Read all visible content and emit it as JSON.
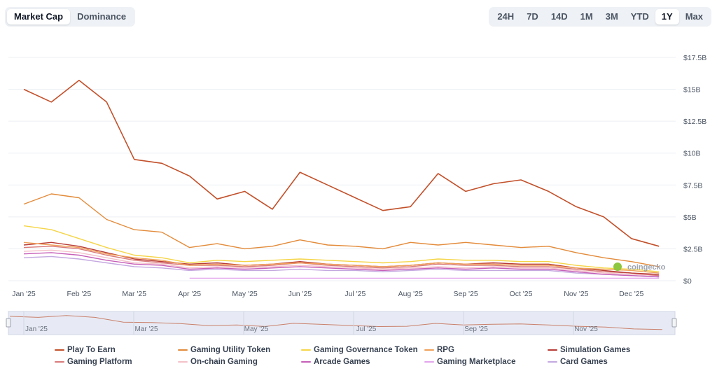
{
  "tabs": [
    {
      "label": "Market Cap",
      "active": true
    },
    {
      "label": "Dominance",
      "active": false
    }
  ],
  "ranges": [
    {
      "label": "24H",
      "active": false
    },
    {
      "label": "7D",
      "active": false
    },
    {
      "label": "14D",
      "active": false
    },
    {
      "label": "1M",
      "active": false
    },
    {
      "label": "3M",
      "active": false
    },
    {
      "label": "YTD",
      "active": false
    },
    {
      "label": "1Y",
      "active": true
    },
    {
      "label": "Max",
      "active": false
    }
  ],
  "watermark": "coingecko",
  "chart_data": {
    "type": "line",
    "x_tick_labels": [
      "Jan '25",
      "Feb '25",
      "Mar '25",
      "Apr '25",
      "May '25",
      "Jun '25",
      "Jul '25",
      "Aug '25",
      "Sep '25",
      "Oct '25",
      "Nov '25",
      "Dec '25"
    ],
    "navigator_tick_labels": [
      "Jan '25",
      "Mar '25",
      "May '25",
      "Jul '25",
      "Sep '25",
      "Nov '25"
    ],
    "y_tick_labels": [
      "$0",
      "$2.5B",
      "$5B",
      "$7.5B",
      "$10B",
      "$12.5B",
      "$15B",
      "$17.5B"
    ],
    "ylim": [
      0,
      17.5
    ],
    "y_unit": "USD billions",
    "grid": true,
    "legend_position": "bottom",
    "x_months": [
      0,
      0.5,
      1,
      1.5,
      2,
      2.5,
      3,
      3.5,
      4,
      4.5,
      5,
      5.5,
      6,
      6.5,
      7,
      7.5,
      8,
      8.5,
      9,
      9.5,
      10,
      10.5,
      11,
      11.5
    ],
    "series": [
      {
        "name": "Play To Earn",
        "color": "#c2502a",
        "values": [
          15.0,
          14.0,
          15.7,
          14.0,
          9.5,
          9.2,
          8.2,
          6.4,
          7.0,
          5.6,
          8.5,
          7.5,
          6.5,
          5.5,
          5.8,
          8.4,
          7.0,
          7.6,
          7.9,
          7.0,
          5.8,
          5.0,
          3.3,
          2.7
        ]
      },
      {
        "name": "Gaming Utility Token",
        "color": "#e38b3a",
        "values": [
          6.0,
          6.8,
          6.5,
          4.8,
          4.0,
          3.8,
          2.6,
          2.9,
          2.5,
          2.7,
          3.2,
          2.8,
          2.7,
          2.5,
          3.0,
          2.8,
          3.0,
          2.8,
          2.6,
          2.7,
          2.2,
          1.8,
          1.5,
          1.1
        ]
      },
      {
        "name": "Gaming Governance Token",
        "color": "#f5d547",
        "values": [
          4.3,
          4.0,
          3.3,
          2.6,
          2.0,
          1.8,
          1.4,
          1.6,
          1.5,
          1.6,
          1.7,
          1.6,
          1.5,
          1.4,
          1.5,
          1.7,
          1.6,
          1.6,
          1.5,
          1.5,
          1.2,
          1.0,
          0.9,
          0.7
        ]
      },
      {
        "name": "RPG",
        "color": "#f0a05a",
        "values": [
          3.0,
          2.8,
          2.6,
          2.1,
          1.8,
          1.6,
          1.2,
          1.3,
          1.2,
          1.3,
          1.4,
          1.3,
          1.2,
          1.1,
          1.2,
          1.4,
          1.3,
          1.3,
          1.2,
          1.2,
          1.0,
          0.9,
          0.8,
          0.6
        ]
      },
      {
        "name": "Simulation Games",
        "color": "#b83b35",
        "values": [
          2.8,
          3.0,
          2.7,
          2.2,
          1.7,
          1.5,
          1.3,
          1.4,
          1.2,
          1.3,
          1.5,
          1.3,
          1.2,
          1.1,
          1.2,
          1.4,
          1.3,
          1.4,
          1.3,
          1.3,
          1.0,
          0.8,
          0.6,
          0.5
        ]
      },
      {
        "name": "Gaming Platform",
        "color": "#d97a7a",
        "values": [
          2.6,
          2.7,
          2.5,
          2.0,
          1.6,
          1.4,
          1.2,
          1.2,
          1.1,
          1.2,
          1.4,
          1.2,
          1.1,
          1.0,
          1.1,
          1.3,
          1.2,
          1.2,
          1.1,
          1.1,
          0.9,
          0.7,
          0.6,
          0.4
        ]
      },
      {
        "name": "On-chain Gaming",
        "color": "#f3c1c9",
        "values": [
          2.3,
          2.4,
          2.2,
          1.8,
          1.4,
          1.3,
          1.0,
          1.1,
          1.0,
          1.1,
          1.2,
          1.1,
          1.0,
          0.9,
          1.0,
          1.1,
          1.0,
          1.1,
          1.0,
          1.0,
          0.8,
          0.6,
          0.5,
          0.4
        ]
      },
      {
        "name": "Arcade Games",
        "color": "#c65fb8",
        "values": [
          2.1,
          2.2,
          2.0,
          1.6,
          1.3,
          1.2,
          0.9,
          1.0,
          0.9,
          1.0,
          1.1,
          1.0,
          0.9,
          0.8,
          0.9,
          1.0,
          0.9,
          1.0,
          0.9,
          0.9,
          0.7,
          0.5,
          0.4,
          0.3
        ]
      },
      {
        "name": "Gaming Marketplace",
        "color": "#e2a4ec",
        "values": [
          null,
          null,
          null,
          null,
          null,
          null,
          0.2,
          0.2,
          0.2,
          0.2,
          0.2,
          0.2,
          0.2,
          0.2,
          0.2,
          0.2,
          0.2,
          0.2,
          0.2,
          0.2,
          0.2,
          0.2,
          0.2,
          0.2
        ]
      },
      {
        "name": "Card Games",
        "color": "#c4a8e0",
        "values": [
          1.8,
          1.9,
          1.7,
          1.4,
          1.1,
          1.0,
          0.8,
          0.9,
          0.8,
          0.8,
          0.9,
          0.8,
          0.8,
          0.7,
          0.8,
          0.9,
          0.8,
          0.8,
          0.8,
          0.8,
          0.6,
          0.5,
          0.4,
          0.3
        ]
      }
    ]
  }
}
